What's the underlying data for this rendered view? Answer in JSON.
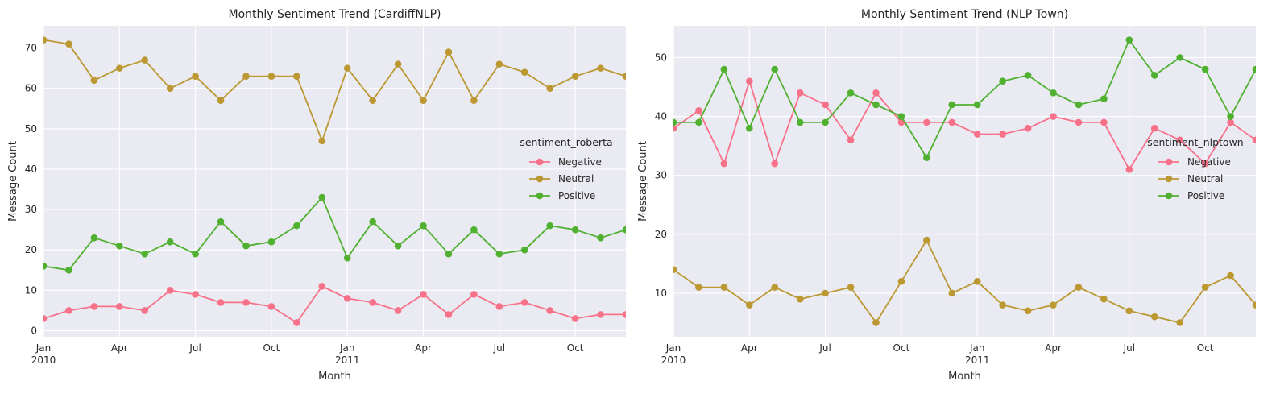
{
  "chart_data": [
    {
      "type": "line",
      "title": "Monthly Sentiment Trend (CardiffNLP)",
      "xlabel": "Month",
      "ylabel": "Message Count",
      "x_start": "2010-01",
      "x_tick_labels": [
        {
          "month": 0,
          "label": "Jan",
          "sub": "2010"
        },
        {
          "month": 3,
          "label": "Apr",
          "sub": ""
        },
        {
          "month": 6,
          "label": "Jul",
          "sub": ""
        },
        {
          "month": 9,
          "label": "Oct",
          "sub": ""
        },
        {
          "month": 12,
          "label": "Jan",
          "sub": "2011"
        },
        {
          "month": 15,
          "label": "Apr",
          "sub": ""
        },
        {
          "month": 18,
          "label": "Jul",
          "sub": ""
        },
        {
          "month": 21,
          "label": "Oct",
          "sub": ""
        }
      ],
      "y_ticks": [
        0,
        10,
        20,
        30,
        40,
        50,
        60,
        70
      ],
      "ylim": [
        -1.5,
        75.5
      ],
      "legend_title": "sentiment_roberta",
      "legend_position": "center-right",
      "grid": true,
      "series": [
        {
          "name": "Negative",
          "color": "#f77189",
          "values": [
            3,
            5,
            6,
            6,
            5,
            10,
            9,
            7,
            7,
            6,
            2,
            11,
            8,
            7,
            5,
            9,
            4,
            9,
            6,
            7,
            5,
            3,
            4,
            4
          ]
        },
        {
          "name": "Neutral",
          "color": "#bb9832",
          "values": [
            72,
            71,
            62,
            65,
            67,
            60,
            63,
            57,
            63,
            63,
            63,
            47,
            65,
            57,
            66,
            57,
            69,
            57,
            66,
            64,
            60,
            63,
            65,
            63
          ]
        },
        {
          "name": "Positive",
          "color": "#50b131",
          "values": [
            16,
            15,
            23,
            21,
            19,
            22,
            19,
            27,
            21,
            22,
            26,
            33,
            18,
            27,
            21,
            26,
            19,
            25,
            19,
            20,
            26,
            25,
            23,
            25
          ]
        }
      ]
    },
    {
      "type": "line",
      "title": "Monthly Sentiment Trend (NLP Town)",
      "xlabel": "Month",
      "ylabel": "Message Count",
      "x_start": "2010-01",
      "x_tick_labels": [
        {
          "month": 0,
          "label": "Jan",
          "sub": "2010"
        },
        {
          "month": 3,
          "label": "Apr",
          "sub": ""
        },
        {
          "month": 6,
          "label": "Jul",
          "sub": ""
        },
        {
          "month": 9,
          "label": "Oct",
          "sub": ""
        },
        {
          "month": 12,
          "label": "Jan",
          "sub": "2011"
        },
        {
          "month": 15,
          "label": "Apr",
          "sub": ""
        },
        {
          "month": 18,
          "label": "Jul",
          "sub": ""
        },
        {
          "month": 21,
          "label": "Oct",
          "sub": ""
        }
      ],
      "y_ticks": [
        10,
        20,
        30,
        40,
        50
      ],
      "ylim": [
        2.6,
        55.4
      ],
      "legend_title": "sentiment_nlptown",
      "legend_position": "center-right",
      "grid": true,
      "series": [
        {
          "name": "Negative",
          "color": "#f77189",
          "values": [
            38,
            41,
            32,
            46,
            32,
            44,
            42,
            36,
            44,
            39,
            39,
            39,
            37,
            37,
            38,
            40,
            39,
            39,
            31,
            38,
            36,
            32,
            39,
            36
          ]
        },
        {
          "name": "Neutral",
          "color": "#bb9832",
          "values": [
            14,
            11,
            11,
            8,
            11,
            9,
            10,
            11,
            5,
            12,
            19,
            10,
            12,
            8,
            7,
            8,
            11,
            9,
            7,
            6,
            5,
            11,
            13,
            8
          ]
        },
        {
          "name": "Positive",
          "color": "#50b131",
          "values": [
            39,
            39,
            48,
            38,
            48,
            39,
            39,
            44,
            42,
            40,
            33,
            42,
            42,
            46,
            47,
            44,
            42,
            43,
            53,
            47,
            50,
            48,
            40,
            48
          ]
        }
      ]
    }
  ]
}
